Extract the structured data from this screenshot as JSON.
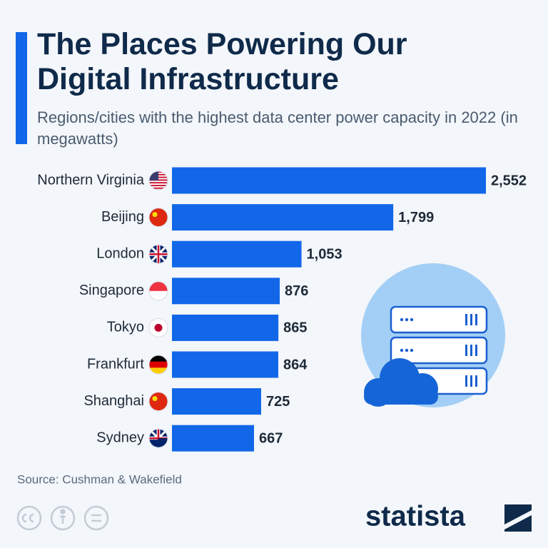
{
  "chart_data": {
    "type": "bar",
    "orientation": "horizontal",
    "title": "The Places Powering Our Digital Infrastructure",
    "subtitle": "Regions/cities with the highest data center power capacity in 2022 (in megawatts)",
    "categories": [
      "Northern Virginia",
      "Beijing",
      "London",
      "Singapore",
      "Tokyo",
      "Frankfurt",
      "Shanghai",
      "Sydney"
    ],
    "values": [
      2552,
      1799,
      1053,
      876,
      865,
      864,
      725,
      667
    ],
    "value_labels": [
      "2,552",
      "1,799",
      "1,053",
      "876",
      "865",
      "864",
      "725",
      "667"
    ],
    "color": "#1167e8",
    "source": "Source: Cushman & Wakefield",
    "brand": "statista"
  }
}
